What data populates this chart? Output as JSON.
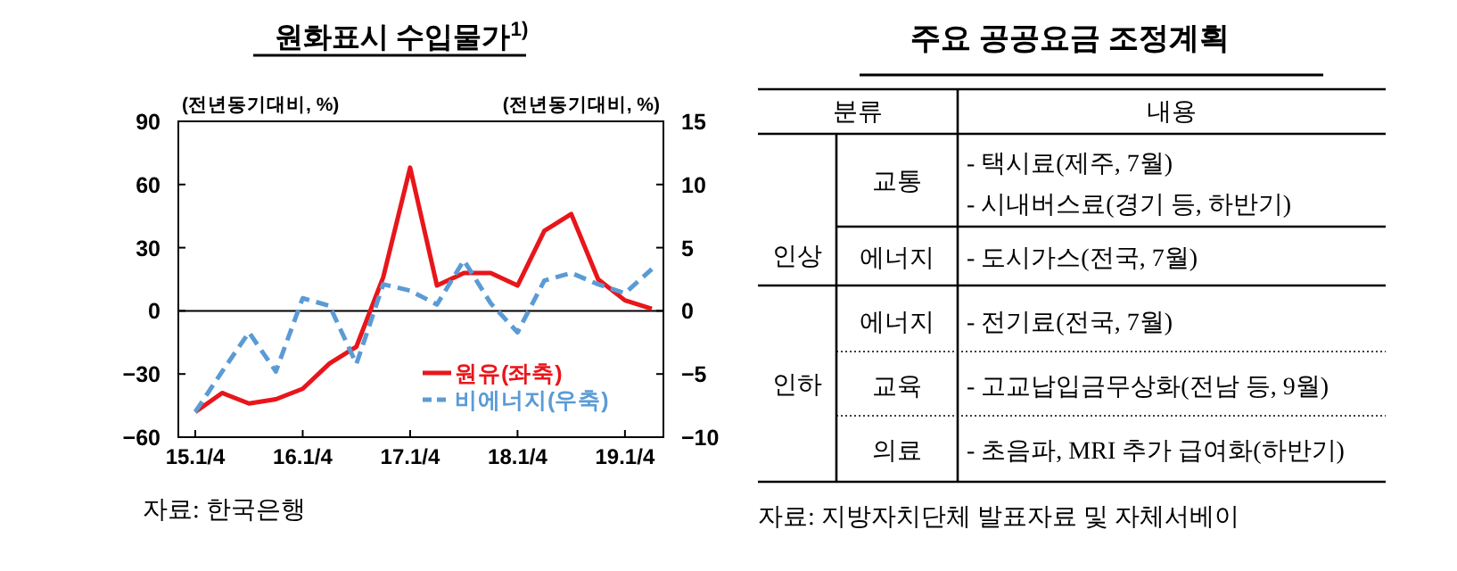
{
  "chart_data": [
    {
      "type": "line",
      "title": "원화표시 수입물가$^{1)}$",
      "ylabel": "(전년동기대비, %)",
      "y2label": "(전년동기대비, %)",
      "categories": [
        "15.1/4",
        null,
        null,
        null,
        "16.1/4",
        null,
        null,
        null,
        "17.1/4",
        null,
        null,
        null,
        "18.1/4",
        null,
        null,
        null,
        "19.1/4",
        null
      ],
      "series": [
        {
          "name": "원유(좌축)",
          "color": "#e8161b",
          "line_style": "solid",
          "values": [
            -48,
            -39,
            -44,
            -42,
            -37,
            -25,
            -17,
            16,
            68,
            12,
            18,
            18,
            12,
            38,
            46,
            15,
            5,
            1
          ]
        },
        {
          "name": "비에너지(우축)",
          "color": "#5b9bd5",
          "line_style": "dashed",
          "axis": "y2",
          "values": [
            -8,
            -4.8,
            -1.7,
            -4.8,
            1.0,
            0.4,
            -4.2,
            2.1,
            1.6,
            0.5,
            4.0,
            0.6,
            -1.7,
            2.4,
            3.0,
            2.1,
            1.4,
            3.3
          ]
        }
      ],
      "ylim": [
        -60,
        90
      ],
      "yticks": [
        -60,
        -30,
        0,
        30,
        60,
        90
      ],
      "y2lim": [
        -10,
        15
      ],
      "y2ticks": [
        -10,
        -5,
        0,
        5,
        10,
        15
      ],
      "ref_lines": [
        {
          "axis": "y",
          "value": 0,
          "color": "#000000"
        }
      ],
      "legend": "bottom right",
      "annotations": [
        "자료: 한국은행"
      ]
    },
    {
      "type": "other",
      "title": "주요 공공요금 조정계획",
      "annotations": [
        "분류",
        "내용",
        "인상",
        "교통",
        "- 택시료(제주, 7월)",
        "- 시내버스료(경기 등, 하반기)",
        "에너지",
        "- 도시가스(전국, 7월)",
        "인하",
        "에너지",
        "- 전기료(전국, 7월)",
        "교육",
        "- 고교납입금무상화(전남 등, 9월)",
        "의료",
        "- 초음파, MRI 추가 급여화(하반기)",
        "자료: 지방자치단체 발표자료 및 자체서베이"
      ]
    }
  ]
}
